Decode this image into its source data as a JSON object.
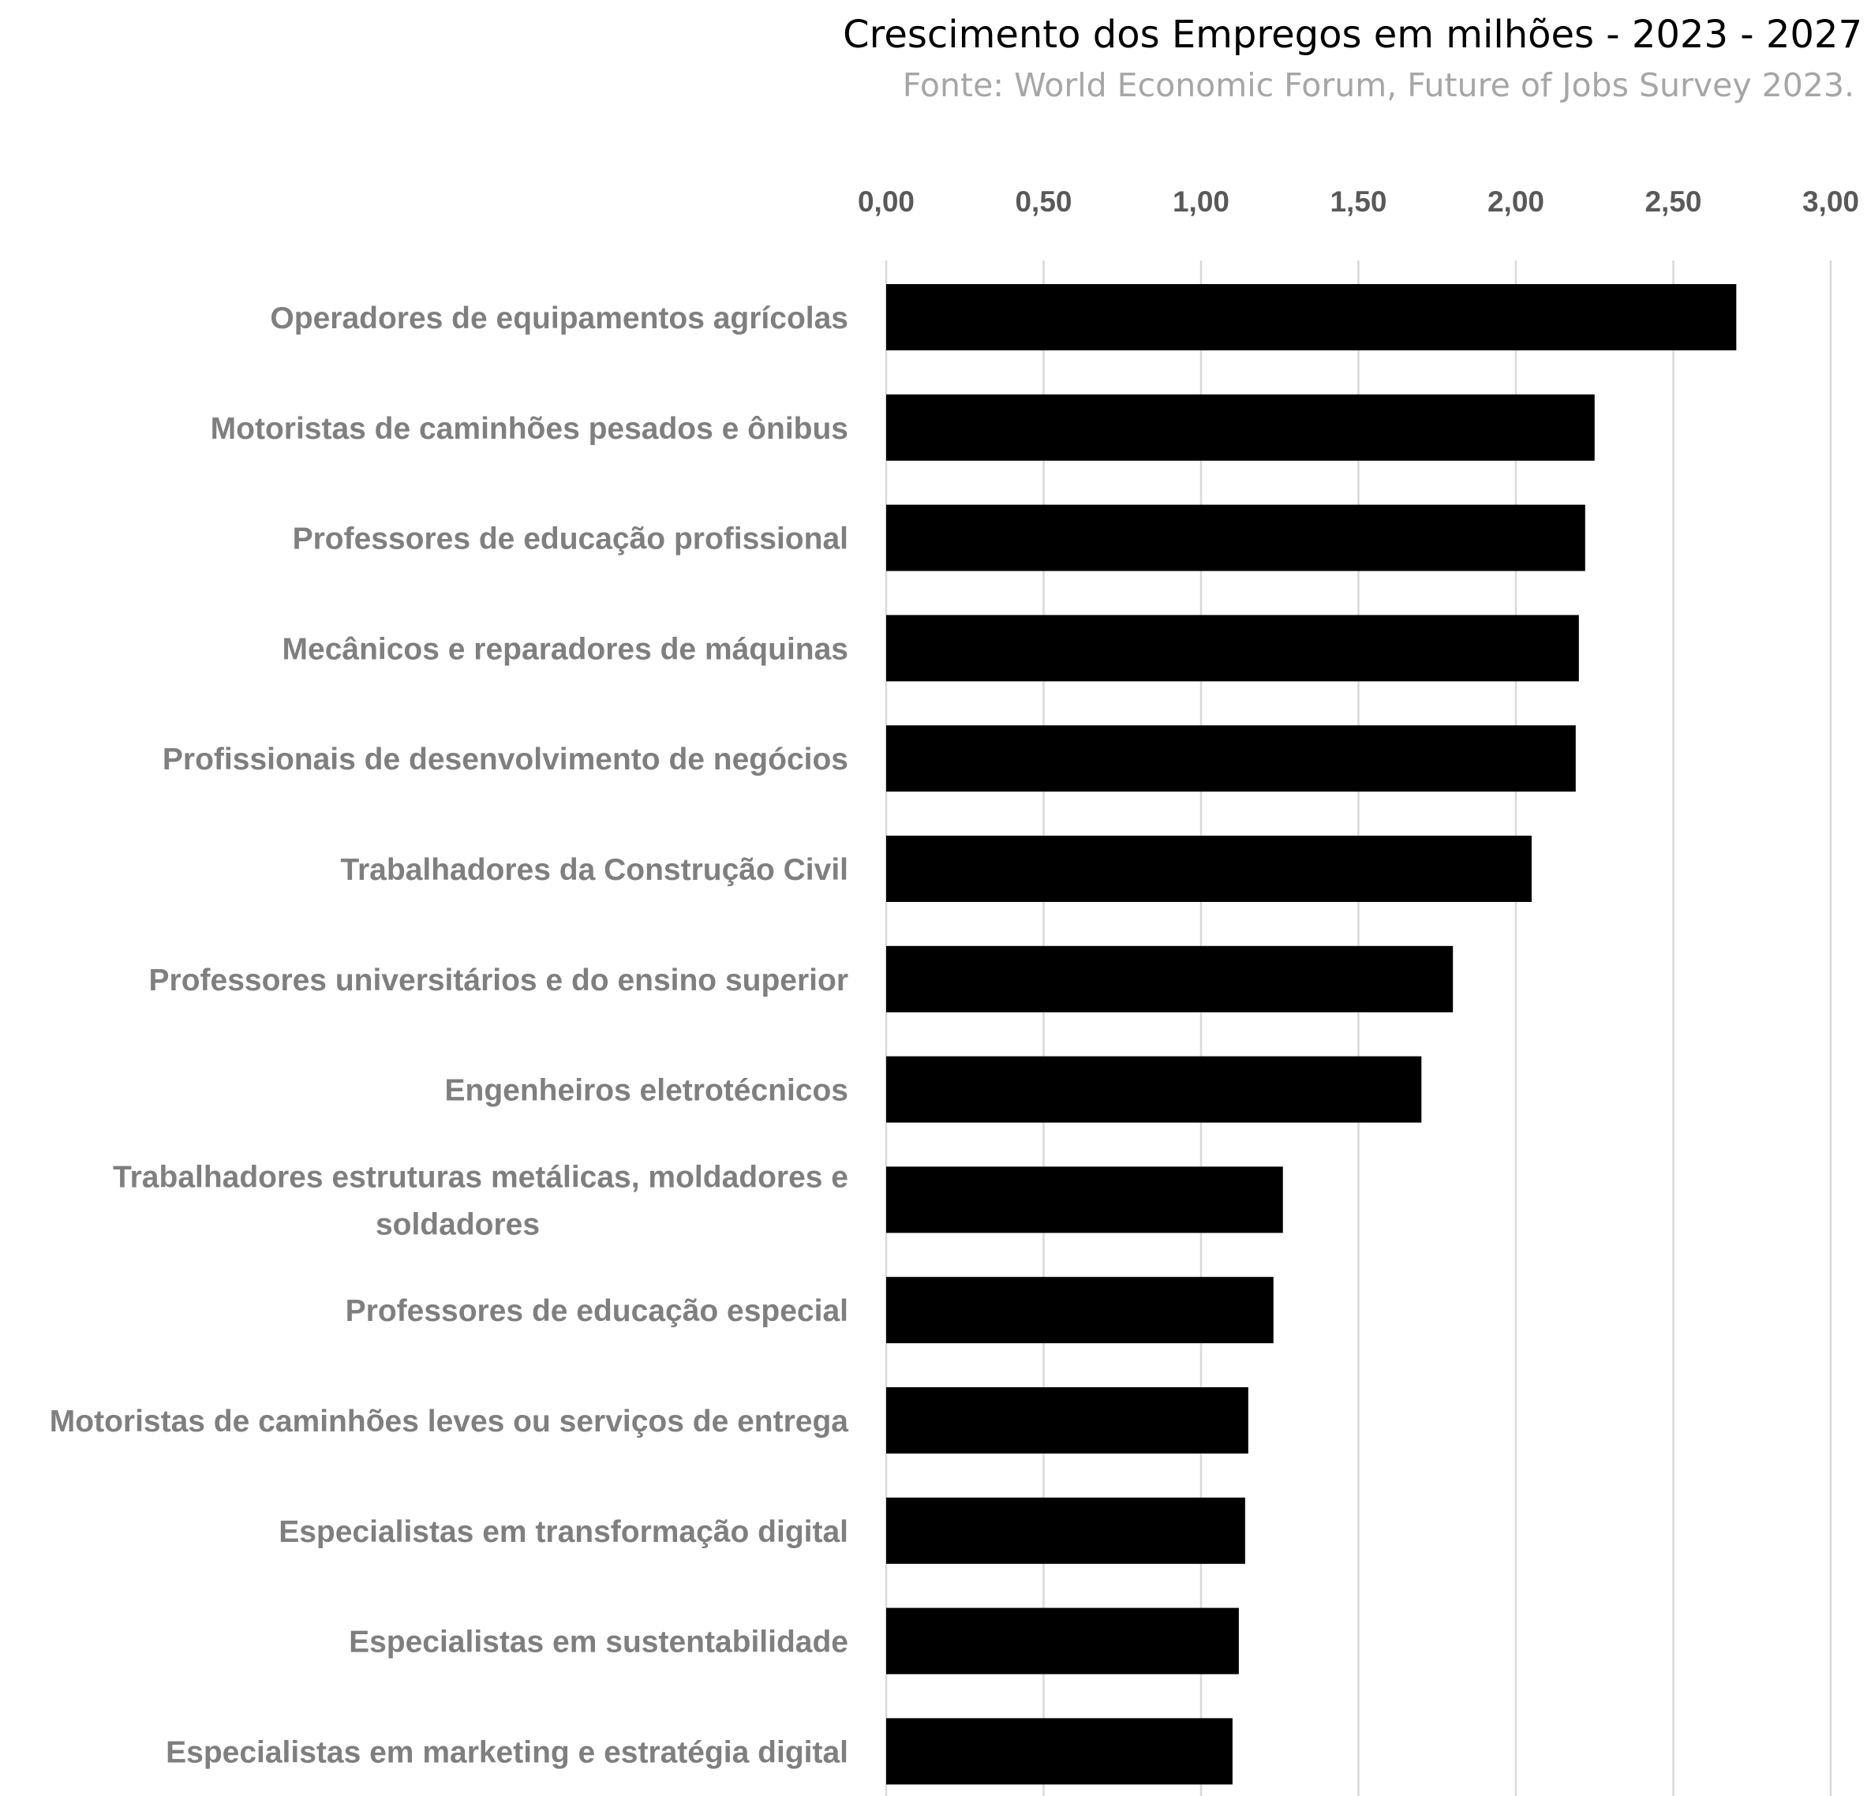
{
  "chart_data": {
    "type": "bar",
    "orientation": "horizontal",
    "title": "Crescimento dos Empregos em milhões  - 2023 - 2027",
    "subtitle": "Fonte: World Economic Forum, Future of Jobs Survey 2023.",
    "xlabel": "",
    "ylabel": "",
    "xlim": [
      0,
      3
    ],
    "axis_position": "top",
    "grid": true,
    "legend": "none",
    "tick_values": [
      0,
      0.5,
      1,
      1.5,
      2,
      2.5,
      3
    ],
    "tick_labels": [
      "0,00",
      "0,50",
      "1,00",
      "1,50",
      "2,00",
      "2,50",
      "3,00"
    ],
    "categories": [
      [
        "Operadores de equipamentos agrícolas"
      ],
      [
        "Motoristas de caminhões pesados e ônibus"
      ],
      [
        "Professores de educação profissional"
      ],
      [
        "Mecânicos e reparadores de máquinas"
      ],
      [
        "Profissionais de desenvolvimento de negócios"
      ],
      [
        "Trabalhadores da Construção Civil"
      ],
      [
        "Professores universitários e do ensino superior"
      ],
      [
        "Engenheiros eletrotécnicos"
      ],
      [
        "Trabalhadores estruturas metálicas, moldadores e",
        "soldadores"
      ],
      [
        "Professores de educação especial"
      ],
      [
        "Motoristas de caminhões leves ou serviços de entrega"
      ],
      [
        "Especialistas em transformação digital"
      ],
      [
        "Especialistas em sustentabilidade"
      ],
      [
        "Especialistas em marketing e estratégia digital"
      ]
    ],
    "values": [
      2.7,
      2.25,
      2.22,
      2.2,
      2.19,
      2.05,
      1.8,
      1.7,
      1.26,
      1.23,
      1.15,
      1.14,
      1.12,
      1.1
    ],
    "bar_color": "#000000",
    "grid_color": "#d9d9d9"
  },
  "colors": {
    "title": "#000000",
    "subtitle": "#a6a6a6",
    "tick_label": "#595959",
    "category_label": "#7f7f7f"
  }
}
